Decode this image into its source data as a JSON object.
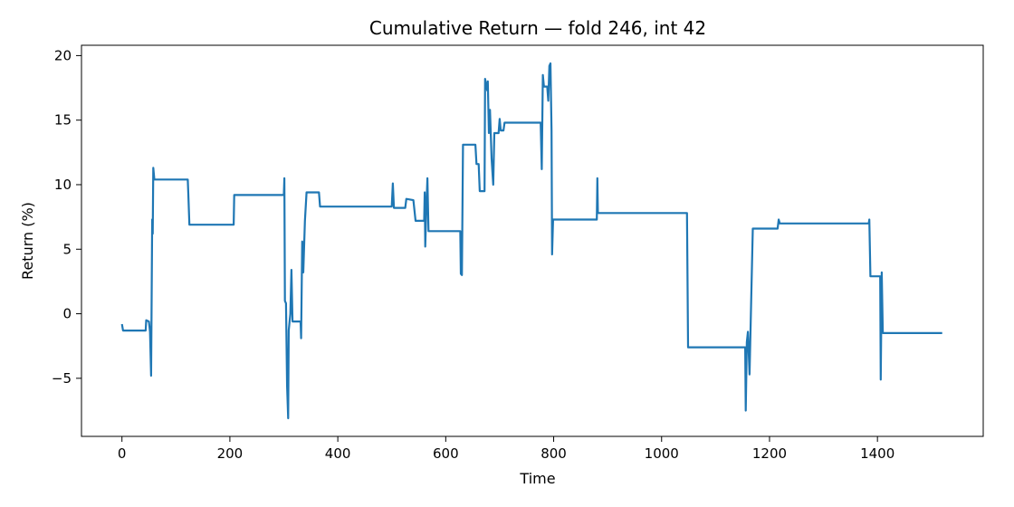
{
  "chart_data": {
    "type": "line",
    "title": "Cumulative Return — fold 246, int 42",
    "xlabel": "Time",
    "ylabel": "Return (%)",
    "xlim": [
      -75,
      1596
    ],
    "ylim": [
      -9.5,
      20.8
    ],
    "xticks": [
      0,
      200,
      400,
      600,
      800,
      1000,
      1200,
      1400
    ],
    "yticks": [
      -5,
      0,
      5,
      10,
      15,
      20
    ],
    "grid": false,
    "series_color": "#1f77b4",
    "series": [
      {
        "points": [
          [
            0,
            -0.8
          ],
          [
            2,
            -1.3
          ],
          [
            44,
            -1.3
          ],
          [
            45,
            -0.5
          ],
          [
            50,
            -0.6
          ],
          [
            52,
            -1.4
          ],
          [
            54,
            -4.8
          ],
          [
            56,
            7.3
          ],
          [
            57,
            6.2
          ],
          [
            58,
            11.3
          ],
          [
            60,
            10.4
          ],
          [
            122,
            10.4
          ],
          [
            123,
            9.3
          ],
          [
            125,
            6.9
          ],
          [
            207,
            6.9
          ],
          [
            208,
            9.2
          ],
          [
            300,
            9.2
          ],
          [
            301,
            10.5
          ],
          [
            302,
            1.0
          ],
          [
            304,
            0.8
          ],
          [
            306,
            -5.6
          ],
          [
            308,
            -8.1
          ],
          [
            309,
            -1.3
          ],
          [
            312,
            0.0
          ],
          [
            314,
            3.4
          ],
          [
            316,
            -0.6
          ],
          [
            331,
            -0.6
          ],
          [
            332,
            -1.9
          ],
          [
            334,
            5.6
          ],
          [
            336,
            3.2
          ],
          [
            339,
            7.2
          ],
          [
            342,
            9.4
          ],
          [
            365,
            9.4
          ],
          [
            367,
            8.3
          ],
          [
            500,
            8.3
          ],
          [
            502,
            10.1
          ],
          [
            504,
            8.2
          ],
          [
            525,
            8.2
          ],
          [
            527,
            8.9
          ],
          [
            540,
            8.8
          ],
          [
            544,
            7.2
          ],
          [
            560,
            7.2
          ],
          [
            561,
            9.4
          ],
          [
            562,
            5.2
          ],
          [
            564,
            8.2
          ],
          [
            566,
            10.5
          ],
          [
            568,
            6.4
          ],
          [
            627,
            6.4
          ],
          [
            628,
            3.1
          ],
          [
            630,
            3.0
          ],
          [
            632,
            13.1
          ],
          [
            655,
            13.1
          ],
          [
            657,
            11.6
          ],
          [
            661,
            11.6
          ],
          [
            663,
            9.5
          ],
          [
            672,
            9.5
          ],
          [
            673,
            18.2
          ],
          [
            677,
            17.3
          ],
          [
            678,
            18.0
          ],
          [
            680,
            14.0
          ],
          [
            682,
            15.8
          ],
          [
            685,
            12.0
          ],
          [
            688,
            10.0
          ],
          [
            690,
            14.0
          ],
          [
            698,
            14.0
          ],
          [
            700,
            15.1
          ],
          [
            702,
            14.2
          ],
          [
            707,
            14.2
          ],
          [
            709,
            14.8
          ],
          [
            776,
            14.8
          ],
          [
            778,
            11.2
          ],
          [
            780,
            18.5
          ],
          [
            782,
            17.6
          ],
          [
            788,
            17.6
          ],
          [
            790,
            16.5
          ],
          [
            792,
            19.2
          ],
          [
            794,
            19.4
          ],
          [
            796,
            14.2
          ],
          [
            797,
            4.6
          ],
          [
            799,
            7.3
          ],
          [
            880,
            7.3
          ],
          [
            881,
            10.5
          ],
          [
            882,
            7.8
          ],
          [
            1047,
            7.8
          ],
          [
            1049,
            -2.6
          ],
          [
            1155,
            -2.6
          ],
          [
            1156,
            -7.5
          ],
          [
            1158,
            -2.2
          ],
          [
            1160,
            -1.4
          ],
          [
            1163,
            -4.7
          ],
          [
            1166,
            1.0
          ],
          [
            1169,
            6.6
          ],
          [
            1215,
            6.6
          ],
          [
            1217,
            7.3
          ],
          [
            1219,
            7.0
          ],
          [
            1384,
            7.0
          ],
          [
            1385,
            7.3
          ],
          [
            1387,
            2.9
          ],
          [
            1405,
            2.9
          ],
          [
            1406,
            -5.1
          ],
          [
            1408,
            3.2
          ],
          [
            1410,
            -1.5
          ],
          [
            1520,
            -1.5
          ]
        ]
      }
    ]
  }
}
